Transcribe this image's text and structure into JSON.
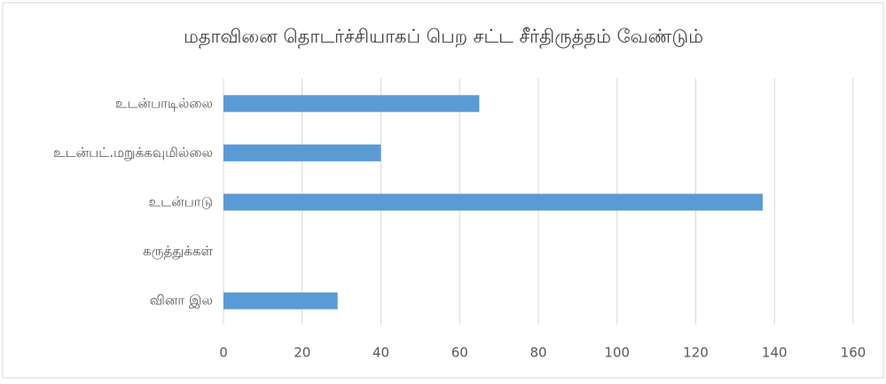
{
  "chart_data": {
    "type": "bar",
    "orientation": "horizontal",
    "title": "மதாவினை தொடர்ச்சியாகப் பெற சட்ட சீர்திருத்தம் வேண்டும்",
    "categories": [
      "உடன்பாடில்லை",
      "உடன்பட்.மறுக்கவுமில்லை",
      "உடன்பாடு",
      "கருத்துக்கள்",
      "வினா இல"
    ],
    "values": [
      65,
      40,
      137,
      null,
      29
    ],
    "color": "#5b9bd5",
    "xlim": [
      0,
      160
    ],
    "xticks": [
      0,
      20,
      40,
      60,
      80,
      100,
      120,
      140,
      160
    ],
    "grid": true
  }
}
